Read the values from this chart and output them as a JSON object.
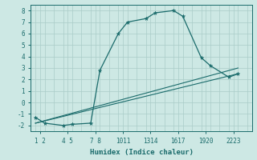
{
  "bg_color": "#cde8e4",
  "grid_color": "#aaccc8",
  "line_color": "#1a6b6b",
  "ylim": [
    -2.5,
    8.5
  ],
  "xlim": [
    0.5,
    24.5
  ],
  "yticks": [
    -2,
    -1,
    0,
    1,
    2,
    3,
    4,
    5,
    6,
    7,
    8
  ],
  "xlabel": "Humidex (Indice chaleur)",
  "curve1_x": [
    1,
    2,
    4,
    5,
    7,
    8,
    10,
    11,
    13,
    14,
    16,
    17,
    19,
    20,
    22,
    23
  ],
  "curve1_y": [
    -1.3,
    -1.8,
    -2.0,
    -1.9,
    -1.8,
    2.8,
    6.0,
    7.0,
    7.3,
    7.8,
    8.0,
    7.5,
    3.9,
    3.2,
    2.2,
    2.5
  ],
  "curve2_x": [
    1,
    23
  ],
  "curve2_y": [
    -1.8,
    2.5
  ],
  "curve3_x": [
    1,
    23
  ],
  "curve3_y": [
    -1.8,
    3.0
  ],
  "xtick_positions": [
    1.5,
    4.5,
    7.5,
    10.5,
    13.5,
    16.5,
    19.5,
    22.5
  ],
  "xtick_labels": [
    "1 2",
    "4 5",
    "7 8",
    "1011",
    "1314",
    "1617",
    "1920",
    "2223"
  ]
}
